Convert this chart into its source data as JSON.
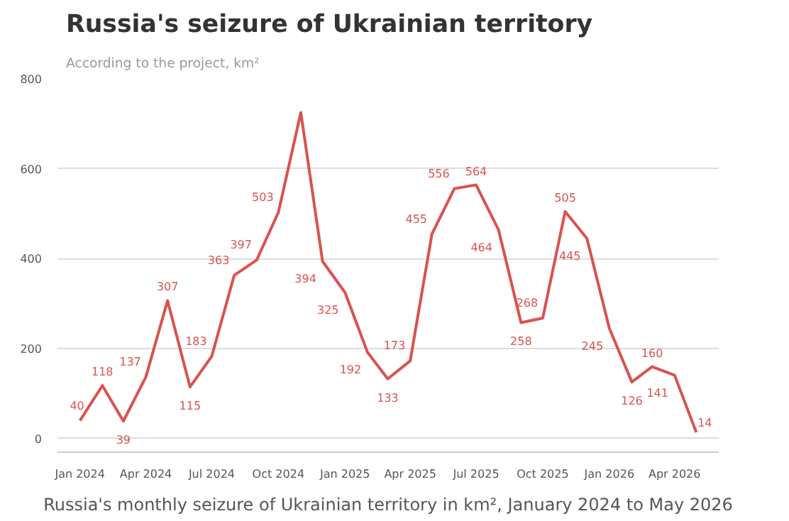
{
  "chart_data": {
    "type": "line",
    "title": "Russia's seizure of Ukrainian territory",
    "subtitle": "According to the project, km²",
    "x": [
      "2024-01",
      "2024-02",
      "2024-03",
      "2024-04",
      "2024-05",
      "2024-06",
      "2024-07",
      "2024-08",
      "2024-09",
      "2024-10",
      "2024-11",
      "2024-12",
      "2025-01",
      "2025-02",
      "2025-03",
      "2025-04",
      "2025-05",
      "2025-06",
      "2025-07",
      "2025-08",
      "2025-09",
      "2025-10",
      "2025-11",
      "2025-12",
      "2026-01",
      "2026-02",
      "2026-03",
      "2026-04",
      "2026-05"
    ],
    "series": [
      {
        "color": "#d9534f",
        "values": [
          40,
          118,
          39,
          137,
          307,
          115,
          183,
          363,
          397,
          503,
          725,
          394,
          325,
          192,
          133,
          173,
          455,
          556,
          564,
          464,
          258,
          268,
          505,
          445,
          245,
          126,
          160,
          141,
          14
        ],
        "value_labels": [
          "40",
          "118",
          "39",
          "137",
          "307",
          "115",
          "183",
          "363",
          "397",
          "503",
          null,
          "394",
          "325",
          "192",
          "133",
          "173",
          "455",
          "556",
          "564",
          "464",
          "258",
          "268",
          "505",
          "445",
          "245",
          "126",
          "160",
          "141",
          "14"
        ]
      }
    ],
    "xlim": [
      "2023-12-01",
      "2026-06-01"
    ],
    "xticks": [
      {
        "value": "2024-01",
        "label": "Jan 2024"
      },
      {
        "value": "2024-04",
        "label": "Apr 2024"
      },
      {
        "value": "2024-07",
        "label": "Jul 2024"
      },
      {
        "value": "2024-10",
        "label": "Oct 2024"
      },
      {
        "value": "2025-01",
        "label": "Jan 2025"
      },
      {
        "value": "2025-04",
        "label": "Apr 2025"
      },
      {
        "value": "2025-07",
        "label": "Jul 2025"
      },
      {
        "value": "2025-10",
        "label": "Oct 2025"
      },
      {
        "value": "2026-01",
        "label": "Jan 2026"
      },
      {
        "value": "2026-04",
        "label": "Apr 2026"
      }
    ],
    "ylim": [
      -30,
      800
    ],
    "yticks": [
      0,
      200,
      400,
      600,
      800
    ],
    "grid": "y",
    "marker": "none",
    "line_style": "solid",
    "annotations": [
      "Russia's monthly seizure of Ukrainian territory in km², January 2024 to May 2026"
    ]
  }
}
